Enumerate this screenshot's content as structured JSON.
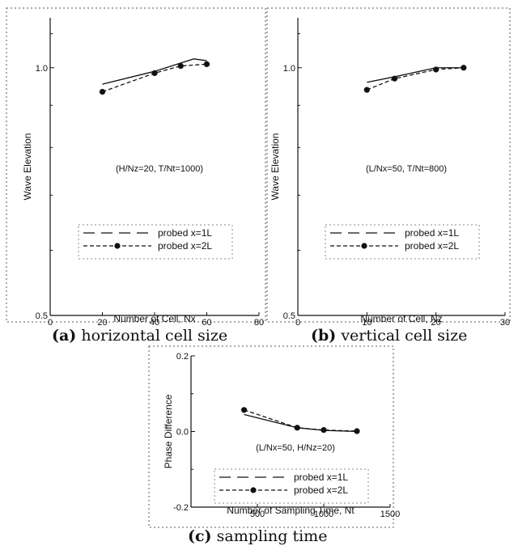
{
  "chart_data": [
    {
      "type": "line",
      "caption_letter": "(a)",
      "caption_text": "horizontal cell size",
      "xlabel": "Number of Cell, Nx",
      "ylabel": "Wave Elevation",
      "xlim": [
        0,
        80
      ],
      "ylim": [
        0.5,
        1.15
      ],
      "log_y": true,
      "x_ticks": [
        "0",
        "20",
        "40",
        "60",
        "80"
      ],
      "y_ticks": [
        "0.5",
        "1.0"
      ],
      "annotation": "(H/Nz=20, T/Nt=1000)",
      "legend_position": "lower-center",
      "series": [
        {
          "name": "probed x=1L",
          "style": "solid-line",
          "points": [
            [
              20,
              0.955
            ],
            [
              40,
              0.99
            ],
            [
              55,
              1.025
            ],
            [
              60,
              1.02
            ]
          ]
        },
        {
          "name": "probed x=2L",
          "style": "dashed-dots",
          "points": [
            [
              20,
              0.935
            ],
            [
              40,
              0.985
            ],
            [
              50,
              1.005
            ],
            [
              60,
              1.01
            ]
          ]
        }
      ]
    },
    {
      "type": "line",
      "caption_letter": "(b)",
      "caption_text": "vertical cell size",
      "xlabel": "Number of Cell, Nz",
      "ylabel": "Wave Elevation",
      "xlim": [
        0,
        30
      ],
      "ylim": [
        0.5,
        1.15
      ],
      "log_y": true,
      "x_ticks": [
        "0",
        "10",
        "20",
        "30"
      ],
      "y_ticks": [
        "0.5",
        "1.0"
      ],
      "annotation": "(L/Nx=50, T/Nt=800)",
      "legend_position": "lower-center",
      "series": [
        {
          "name": "probed x=1L",
          "style": "solid-line",
          "points": [
            [
              10,
              0.96
            ],
            [
              14,
              0.975
            ],
            [
              20,
              1.0
            ],
            [
              24,
              1.0
            ]
          ]
        },
        {
          "name": "probed x=2L",
          "style": "dashed-dots",
          "points": [
            [
              10,
              0.94
            ],
            [
              14,
              0.97
            ],
            [
              20,
              0.995
            ],
            [
              24,
              1.0
            ]
          ]
        }
      ]
    },
    {
      "type": "line",
      "caption_letter": "(c)",
      "caption_text": "sampling time",
      "xlabel": "Number of Sampling Time, Nt",
      "ylabel": "Phase Difference",
      "xlim": [
        0,
        1500
      ],
      "ylim": [
        -0.2,
        0.2
      ],
      "log_y": false,
      "x_ticks": [
        "500",
        "1000",
        "1500"
      ],
      "y_ticks": [
        "-0.2",
        "0.0",
        "0.2"
      ],
      "annotation": "(L/Nx=50, H/Nz=20)",
      "legend_position": "lower-center",
      "series": [
        {
          "name": "probed x=1L",
          "style": "solid-line",
          "points": [
            [
              400,
              0.045
            ],
            [
              800,
              0.01
            ],
            [
              1000,
              0.003
            ],
            [
              1250,
              0.0
            ]
          ]
        },
        {
          "name": "probed x=2L",
          "style": "dashed-dots",
          "points": [
            [
              400,
              0.057
            ],
            [
              800,
              0.01
            ],
            [
              1000,
              0.004
            ],
            [
              1250,
              0.001
            ]
          ]
        }
      ]
    }
  ]
}
